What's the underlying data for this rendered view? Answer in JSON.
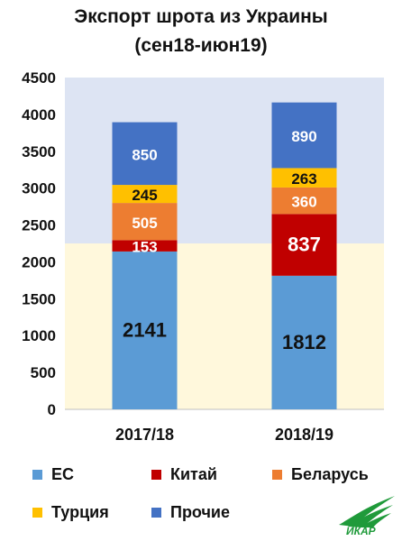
{
  "chart_data": {
    "type": "bar",
    "stacked": true,
    "title": "Экспорт шрота из Украины",
    "subtitle": "(сен18-июн19)",
    "categories": [
      "2017/18",
      "2018/19"
    ],
    "series": [
      {
        "name": "ЕС",
        "color": "#5b9bd5",
        "values": [
          2141,
          1812
        ]
      },
      {
        "name": "Китай",
        "color": "#c00000",
        "values": [
          153,
          837
        ]
      },
      {
        "name": "Беларусь",
        "color": "#ed7d31",
        "values": [
          505,
          360
        ]
      },
      {
        "name": "Турция",
        "color": "#ffc000",
        "values": [
          245,
          263
        ]
      },
      {
        "name": "Прочие",
        "color": "#4472c4",
        "values": [
          850,
          890
        ]
      }
    ],
    "ylim": [
      0,
      4500
    ],
    "yticks": [
      0,
      500,
      1000,
      1500,
      2000,
      2500,
      3000,
      3500,
      4000,
      4500
    ],
    "background_bands": [
      {
        "from": 0,
        "to": 2250,
        "color": "#fff8dc"
      },
      {
        "from": 2250,
        "to": 4500,
        "color": "#dde4f3"
      }
    ],
    "legend_position": "bottom",
    "grid": false
  },
  "logo": {
    "text": "ИКАР",
    "color": "#1f9a3a"
  }
}
